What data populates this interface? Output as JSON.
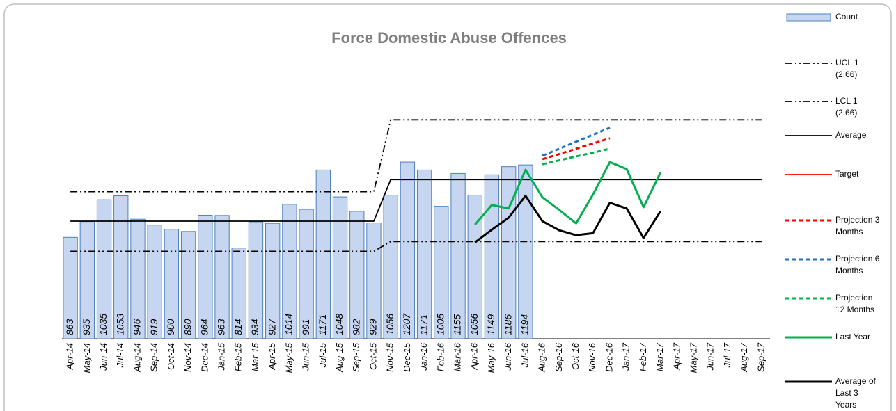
{
  "chart_data": {
    "type": "bar",
    "title": "Force Domestic Abuse Offences",
    "categories": [
      "Apr-14",
      "May-14",
      "Jun-14",
      "Jul-14",
      "Aug-14",
      "Sep-14",
      "Oct-14",
      "Nov-14",
      "Dec-14",
      "Jan-15",
      "Feb-15",
      "Mar-15",
      "Apr-15",
      "May-15",
      "Jun-15",
      "Jul-15",
      "Aug-15",
      "Sep-15",
      "Oct-15",
      "Nov-15",
      "Dec-15",
      "Jan-16",
      "Feb-16",
      "Mar-16",
      "Apr-16",
      "May-16",
      "Jun-16",
      "Jul-16",
      "Aug-16",
      "Sep-16",
      "Oct-16",
      "Nov-16",
      "Dec-16",
      "Jan-17",
      "Feb-17",
      "Mar-17",
      "Apr-17",
      "May-17",
      "Jun-17",
      "Jul-17",
      "Aug-17",
      "Sep-17"
    ],
    "ylim": [
      400,
      1900
    ],
    "series": [
      {
        "name": "Count",
        "type": "bar",
        "color": "#c6d6f0",
        "values": [
          863,
          935,
          1035,
          1053,
          946,
          919,
          900,
          890,
          964,
          963,
          814,
          934,
          927,
          1014,
          991,
          1171,
          1048,
          982,
          929,
          1056,
          1207,
          1171,
          1005,
          1155,
          1056,
          1149,
          1186,
          1194,
          null,
          null,
          null,
          null,
          null,
          null,
          null,
          null,
          null,
          null,
          null,
          null,
          null,
          null
        ]
      },
      {
        "name": "UCL 1 (2.66)",
        "type": "line",
        "style": "dashdot",
        "color": "#000000",
        "values": [
          1072,
          1072,
          1072,
          1072,
          1072,
          1072,
          1072,
          1072,
          1072,
          1072,
          1072,
          1072,
          1072,
          1072,
          1072,
          1072,
          1072,
          1072,
          1072,
          1400,
          1400,
          1400,
          1400,
          1400,
          1400,
          1400,
          1400,
          1400,
          1400,
          1400,
          1400,
          1400,
          1400,
          1400,
          1400,
          1400,
          1400,
          1400,
          1400,
          1400,
          1400,
          1400
        ]
      },
      {
        "name": "LCL 1 (2.66)",
        "type": "line",
        "style": "dashdot",
        "color": "#000000",
        "values": [
          799,
          799,
          799,
          799,
          799,
          799,
          799,
          799,
          799,
          799,
          799,
          799,
          799,
          799,
          799,
          799,
          799,
          799,
          799,
          844,
          844,
          844,
          844,
          844,
          844,
          844,
          844,
          844,
          844,
          844,
          844,
          844,
          844,
          844,
          844,
          844,
          844,
          844,
          844,
          844,
          844,
          844
        ]
      },
      {
        "name": "Average",
        "type": "line",
        "style": "solid",
        "color": "#000000",
        "values": [
          937,
          937,
          937,
          937,
          937,
          937,
          937,
          937,
          937,
          937,
          937,
          937,
          937,
          937,
          937,
          937,
          937,
          937,
          937,
          1127,
          1127,
          1127,
          1127,
          1127,
          1127,
          1127,
          1127,
          1127,
          1127,
          1127,
          1127,
          1127,
          1127,
          1127,
          1127,
          1127,
          1127,
          1127,
          1127,
          1127,
          1127,
          1127
        ]
      },
      {
        "name": "Target",
        "type": "line",
        "style": "solid",
        "color": "#ff0000",
        "values": [
          null,
          null,
          null,
          null,
          null,
          null,
          null,
          null,
          null,
          null,
          null,
          null,
          null,
          null,
          null,
          null,
          null,
          null,
          null,
          null,
          null,
          null,
          null,
          null,
          null,
          null,
          null,
          null,
          null,
          null,
          null,
          null,
          null,
          null,
          null,
          null,
          null,
          null,
          null,
          null,
          null,
          null
        ]
      },
      {
        "name": "Projection 3 Months",
        "type": "line",
        "style": "dashed",
        "color": "#ff0000",
        "values": [
          null,
          null,
          null,
          null,
          null,
          null,
          null,
          null,
          null,
          null,
          null,
          null,
          null,
          null,
          null,
          null,
          null,
          null,
          null,
          null,
          null,
          null,
          null,
          null,
          null,
          null,
          null,
          null,
          1220,
          1244,
          1268,
          1292,
          1316,
          null,
          null,
          null,
          null,
          null,
          null,
          null,
          null,
          null
        ]
      },
      {
        "name": "Projection 6 Months",
        "type": "line",
        "style": "dashed",
        "color": "#1f6fc5",
        "values": [
          null,
          null,
          null,
          null,
          null,
          null,
          null,
          null,
          null,
          null,
          null,
          null,
          null,
          null,
          null,
          null,
          null,
          null,
          null,
          null,
          null,
          null,
          null,
          null,
          null,
          null,
          null,
          null,
          1236,
          1268,
          1300,
          1332,
          1364,
          null,
          null,
          null,
          null,
          null,
          null,
          null,
          null,
          null
        ]
      },
      {
        "name": "Projection 12 Months",
        "type": "line",
        "style": "dashed",
        "color": "#00b050",
        "values": [
          null,
          null,
          null,
          null,
          null,
          null,
          null,
          null,
          null,
          null,
          null,
          null,
          null,
          null,
          null,
          null,
          null,
          null,
          null,
          null,
          null,
          null,
          null,
          null,
          null,
          null,
          null,
          null,
          1197,
          1215,
          1233,
          1250,
          1268,
          null,
          null,
          null,
          null,
          null,
          null,
          null,
          null,
          null
        ]
      },
      {
        "name": "Last Year",
        "type": "line",
        "style": "solid",
        "color": "#00b050",
        "values": [
          null,
          null,
          null,
          null,
          null,
          null,
          null,
          null,
          null,
          null,
          null,
          null,
          null,
          null,
          null,
          null,
          null,
          null,
          null,
          null,
          null,
          null,
          null,
          null,
          921,
          1011,
          995,
          1172,
          1046,
          988,
          927,
          1059,
          1207,
          1175,
          1001,
          1159,
          null,
          null,
          null,
          null,
          null,
          null
        ]
      },
      {
        "name": "Average of Last 3 Years",
        "type": "line",
        "style": "thick",
        "color": "#000000",
        "values": [
          null,
          null,
          null,
          null,
          null,
          null,
          null,
          null,
          null,
          null,
          null,
          null,
          null,
          null,
          null,
          null,
          null,
          null,
          null,
          null,
          null,
          null,
          null,
          null,
          840,
          898,
          953,
          1053,
          937,
          895,
          873,
          882,
          1021,
          995,
          860,
          982,
          null,
          null,
          null,
          null,
          null,
          null
        ]
      }
    ]
  }
}
